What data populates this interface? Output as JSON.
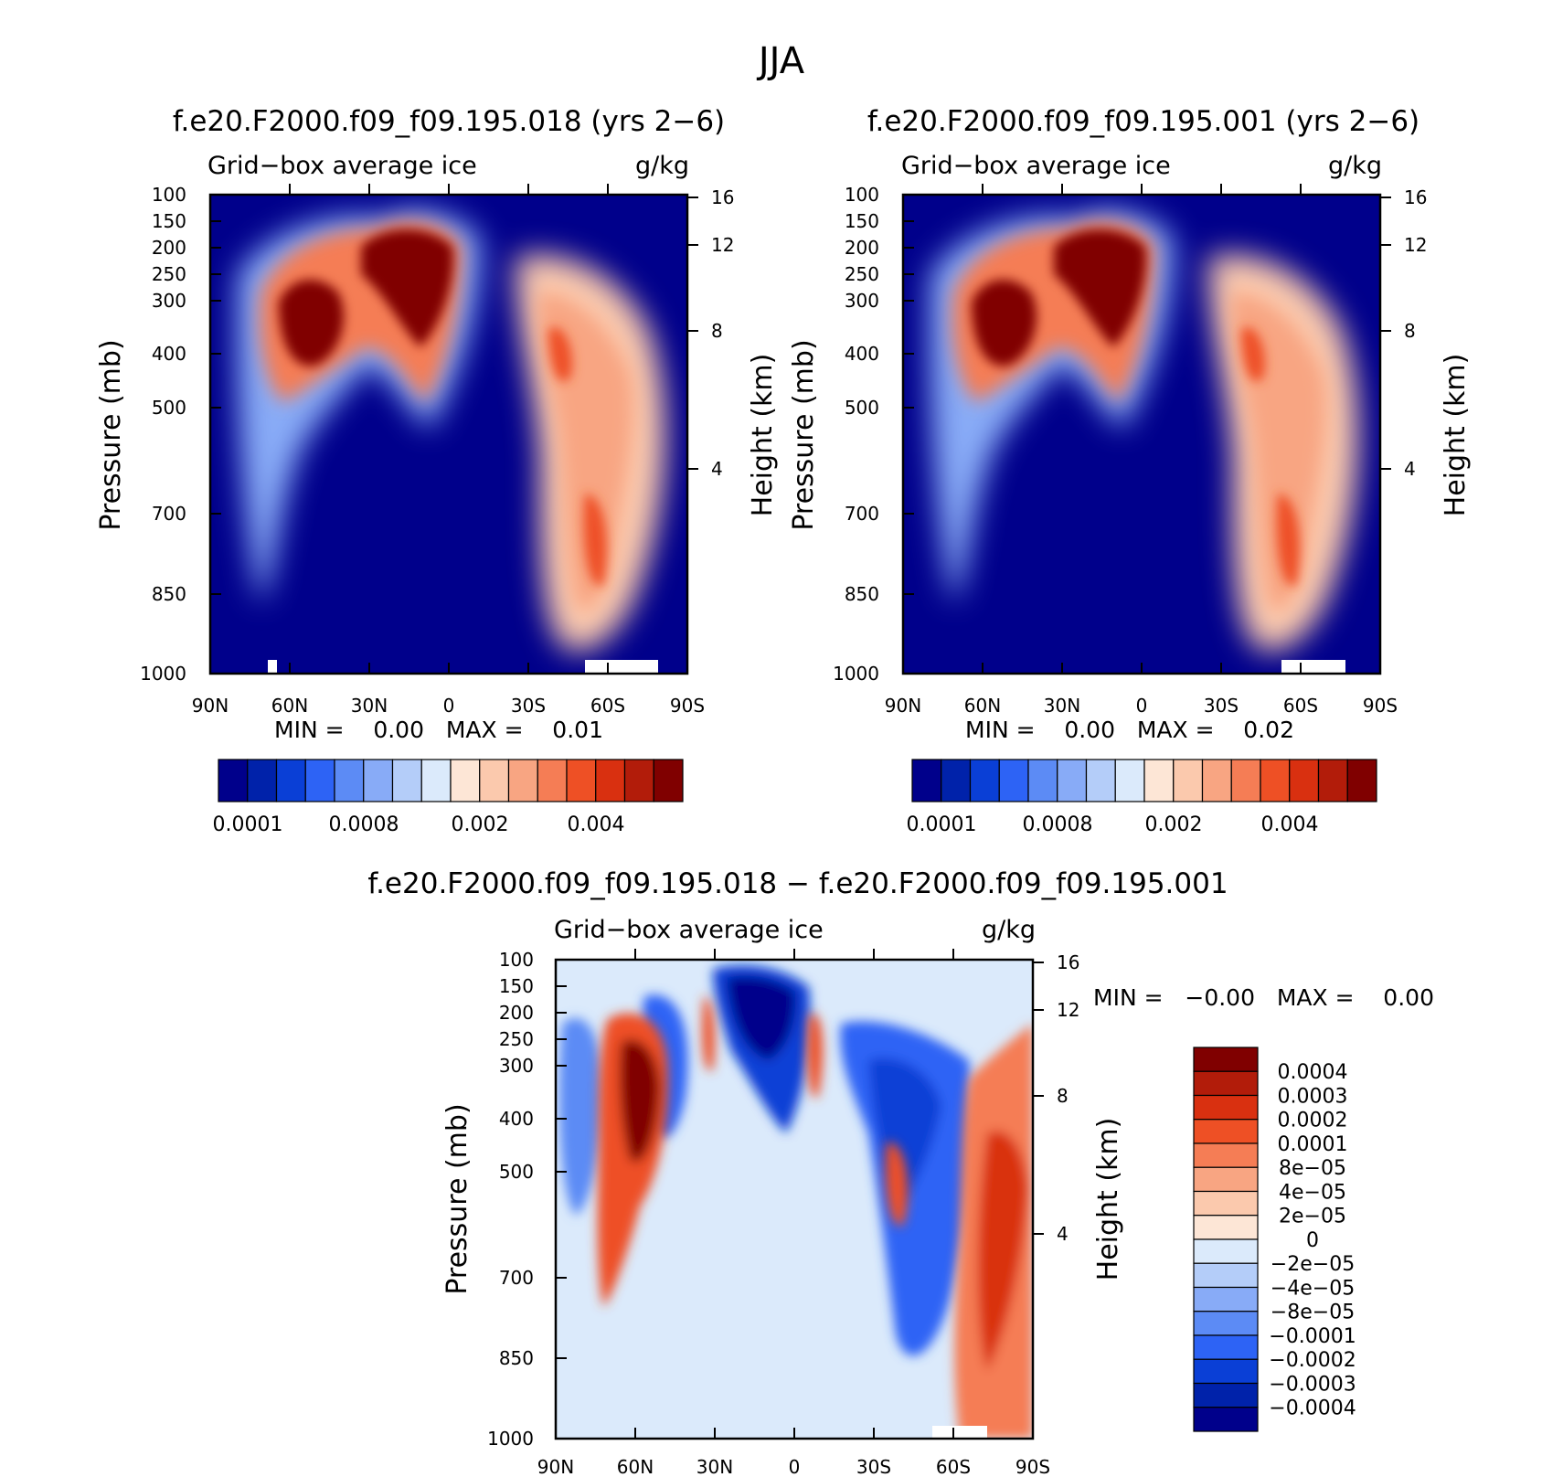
{
  "figure": {
    "title": "JJA"
  },
  "chart_data": [
    {
      "type": "heatmap",
      "title": "f.e20.F2000.f09_f09.195.018 (yrs 2−6)",
      "subtitle_left": "Grid−box average ice",
      "units": "g/kg",
      "ylabel": "Pressure (mb)",
      "ylabel_right": "Height (km)",
      "x_ticks": [
        "90N",
        "60N",
        "30N",
        "0",
        "30S",
        "60S",
        "90S"
      ],
      "y_ticks": [
        "100",
        "150",
        "200",
        "250",
        "300",
        "400",
        "500",
        "700",
        "850",
        "1000"
      ],
      "y_ticks_right": [
        "16",
        "12",
        "8",
        "4"
      ],
      "min_max": "MIN =    0.00   MAX =    0.01",
      "colorbar": {
        "orientation": "horizontal",
        "labels": [
          "0.0001",
          "0.0008",
          "0.002",
          "0.004"
        ],
        "colors": [
          "#00008b",
          "#0022aa",
          "#0a3fd6",
          "#2d63f5",
          "#5c8bf5",
          "#88abf7",
          "#b4cdf9",
          "#dbeafb",
          "#fde6d6",
          "#fbc9ad",
          "#f8a582",
          "#f57d55",
          "#ee5025",
          "#d93010",
          "#b21c0a",
          "#800000"
        ]
      },
      "summary": {
        "ice_max_nh": "200-400 mb, 50N-10N",
        "ice_max_sh": "350-800 mb, 30S-65S"
      }
    },
    {
      "type": "heatmap",
      "title": "f.e20.F2000.f09_f09.195.001 (yrs 2−6)",
      "subtitle_left": "Grid−box average ice",
      "units": "g/kg",
      "ylabel": "Pressure (mb)",
      "ylabel_right": "Height (km)",
      "x_ticks": [
        "90N",
        "60N",
        "30N",
        "0",
        "30S",
        "60S",
        "90S"
      ],
      "y_ticks": [
        "100",
        "150",
        "200",
        "250",
        "300",
        "400",
        "500",
        "700",
        "850",
        "1000"
      ],
      "y_ticks_right": [
        "16",
        "12",
        "8",
        "4"
      ],
      "min_max": "MIN =    0.00   MAX =    0.02",
      "colorbar": {
        "orientation": "horizontal",
        "labels": [
          "0.0001",
          "0.0008",
          "0.002",
          "0.004"
        ],
        "colors": [
          "#00008b",
          "#0022aa",
          "#0a3fd6",
          "#2d63f5",
          "#5c8bf5",
          "#88abf7",
          "#b4cdf9",
          "#dbeafb",
          "#fde6d6",
          "#fbc9ad",
          "#f8a582",
          "#f57d55",
          "#ee5025",
          "#d93010",
          "#b21c0a",
          "#800000"
        ]
      }
    },
    {
      "type": "heatmap",
      "title": "f.e20.F2000.f09_f09.195.018 − f.e20.F2000.f09_f09.195.001",
      "subtitle_left": "Grid−box average ice",
      "units": "g/kg",
      "ylabel": "Pressure (mb)",
      "ylabel_right": "Height (km)",
      "x_ticks": [
        "90N",
        "60N",
        "30N",
        "0",
        "30S",
        "60S",
        "90S"
      ],
      "y_ticks": [
        "100",
        "150",
        "200",
        "250",
        "300",
        "400",
        "500",
        "700",
        "850",
        "1000"
      ],
      "y_ticks_right": [
        "16",
        "12",
        "8",
        "4"
      ],
      "min_max": "MIN =   −0.00   MAX =    0.00",
      "colorbar": {
        "orientation": "vertical",
        "labels": [
          "0.0004",
          "0.0003",
          "0.0002",
          "0.0001",
          "8e−05",
          "4e−05",
          "2e−05",
          "0",
          "−2e−05",
          "−4e−05",
          "−8e−05",
          "−0.0001",
          "−0.0002",
          "−0.0003",
          "−0.0004"
        ],
        "colors": [
          "#800000",
          "#b21c0a",
          "#d93010",
          "#ee5025",
          "#f57d55",
          "#f8a582",
          "#fbc9ad",
          "#fde6d6",
          "#dbeafb",
          "#b4cdf9",
          "#88abf7",
          "#5c8bf5",
          "#2d63f5",
          "#0a3fd6",
          "#0022aa",
          "#00008b"
        ]
      }
    }
  ]
}
